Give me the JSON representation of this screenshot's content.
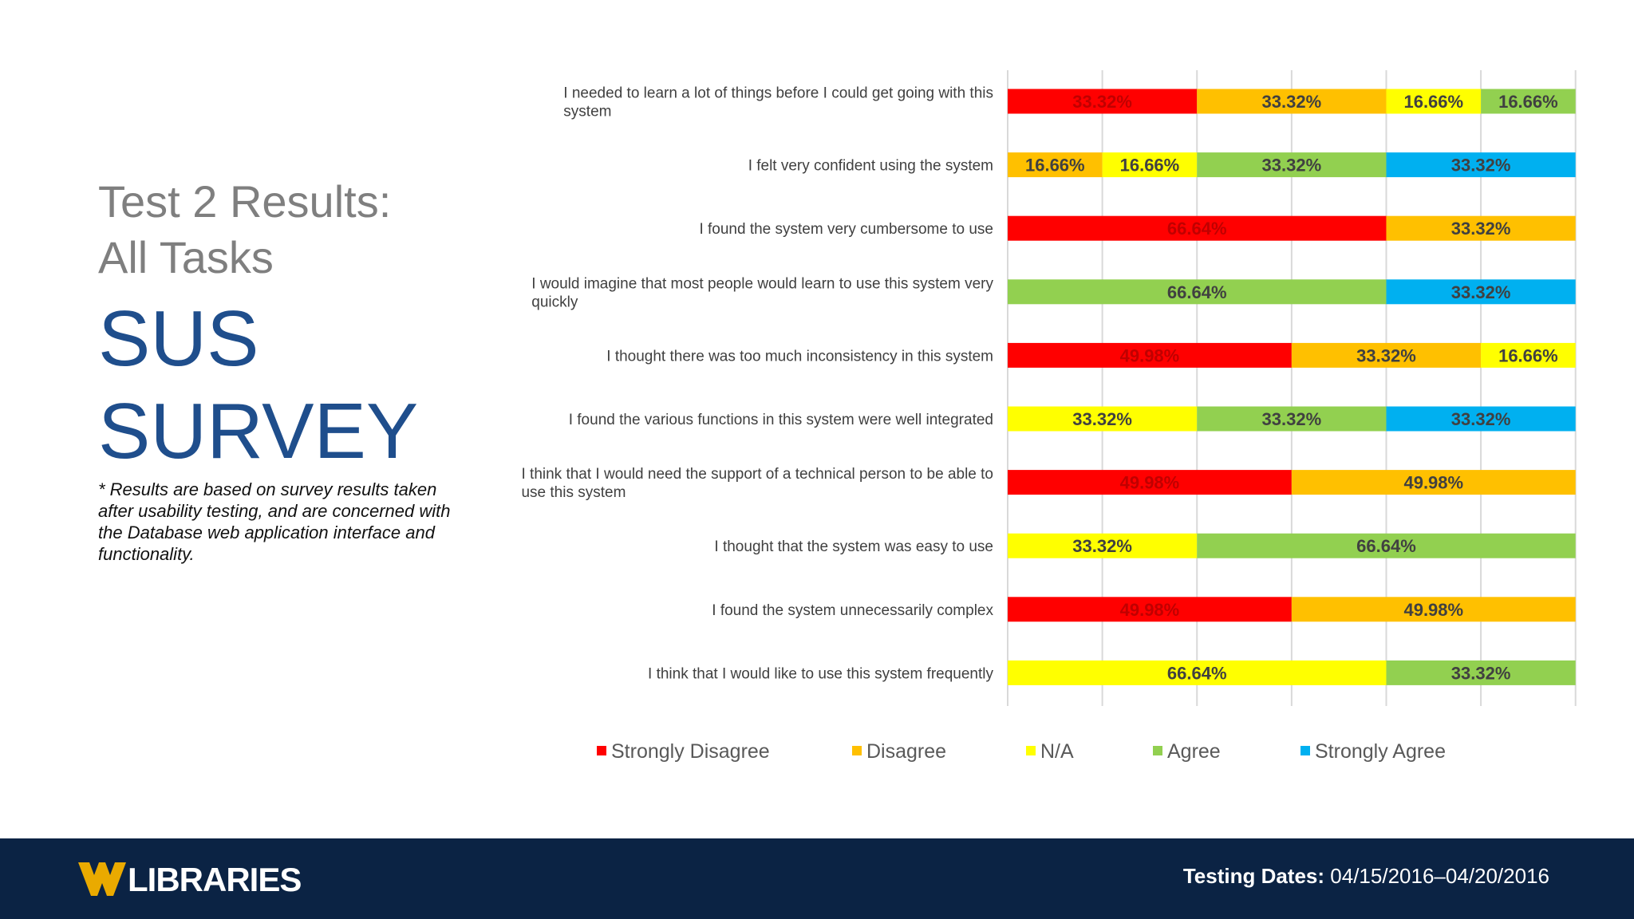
{
  "slide": {
    "title_line1": "Test 2 Results:",
    "title_line2": "All Tasks",
    "heading_line1": "SUS",
    "heading_line2": "SURVEY",
    "footnote": "* Results are based on survey results taken after usability testing, and are concerned with the Database web application interface and functionality."
  },
  "footer": {
    "logo_text": "LIBRARIES",
    "dates_label": "Testing Dates:",
    "dates_value": "04/15/2016–04/20/2016",
    "background_color": "#0b2344",
    "logo_gold": "#eaaa00"
  },
  "chart_data": {
    "type": "bar",
    "orientation": "horizontal",
    "stacked": true,
    "xlim": [
      0,
      100
    ],
    "grid": true,
    "legend_position": "bottom",
    "categories": [
      "I needed to learn a lot of things before I could get going with this system",
      "I felt very confident using the system",
      "I found the system very cumbersome to use",
      "I would imagine that most people would learn to use this system very quickly",
      "I thought there was too much inconsistency in this system",
      "I found the various functions in this system were well integrated",
      "I think that I would need the support of a technical person to be able to use this system",
      "I thought that the system was easy to use",
      "I found the system unnecessarily complex",
      "I think that I would like to use this system frequently"
    ],
    "category_lines": [
      [
        "I needed to learn a lot of things before I could get going with this",
        "system"
      ],
      [
        "I felt very confident using the system"
      ],
      [
        "I found the system very cumbersome to use"
      ],
      [
        "I would imagine that most people would learn to use this system very",
        "quickly"
      ],
      [
        "I thought there was too much inconsistency in this system"
      ],
      [
        "I found the various functions in this system were well integrated"
      ],
      [
        "I think that I would need the support of a technical person to be able to",
        "use this system"
      ],
      [
        "I thought that the system was easy to use"
      ],
      [
        "I found the system unnecessarily complex"
      ],
      [
        "I think that I would like to use this system frequently"
      ]
    ],
    "series": [
      {
        "name": "Strongly Disagree",
        "color": "#ff0000",
        "label_color": "#c00000",
        "values": [
          33.32,
          0,
          66.64,
          0,
          49.98,
          0,
          49.98,
          0,
          49.98,
          0
        ]
      },
      {
        "name": "Disagree",
        "color": "#ffc000",
        "label_color": "#404040",
        "values": [
          33.32,
          16.66,
          33.32,
          0,
          33.32,
          0,
          49.98,
          0,
          49.98,
          0
        ]
      },
      {
        "name": "N/A",
        "color": "#ffff00",
        "label_color": "#404040",
        "values": [
          16.66,
          16.66,
          0,
          0,
          16.66,
          33.32,
          0,
          33.32,
          0,
          66.64
        ]
      },
      {
        "name": "Agree",
        "color": "#92d050",
        "label_color": "#404040",
        "values": [
          16.66,
          33.32,
          0,
          66.64,
          0,
          33.32,
          0,
          66.64,
          0,
          33.32
        ]
      },
      {
        "name": "Strongly Agree",
        "color": "#00b0f0",
        "label_color": "#404040",
        "values": [
          0,
          33.32,
          0,
          33.32,
          0,
          33.32,
          0,
          0,
          0,
          0
        ]
      }
    ],
    "value_suffix": "%"
  }
}
